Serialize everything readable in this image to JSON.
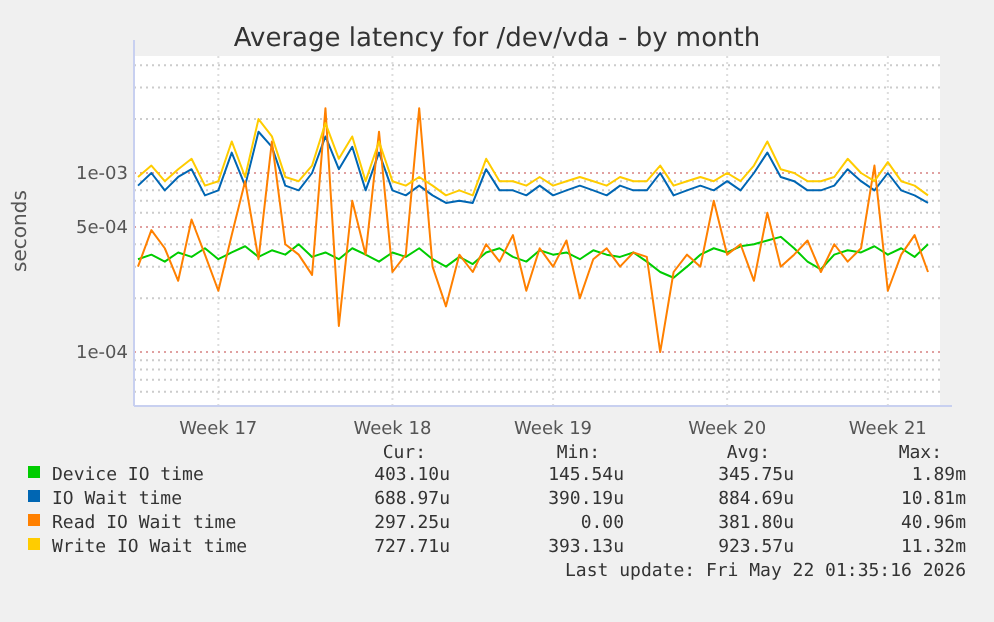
{
  "chart_data": {
    "type": "line",
    "title": "Average latency for /dev/vda - by month",
    "ylabel": "seconds",
    "log": "y",
    "grid": true,
    "legend": "bottom",
    "categories": [
      null,
      null,
      null,
      null,
      null,
      null,
      "Week 17",
      null,
      null,
      null,
      null,
      null,
      null,
      null,
      null,
      null,
      null,
      null,
      null,
      "Week 18",
      null,
      null,
      null,
      null,
      null,
      null,
      null,
      null,
      null,
      null,
      null,
      "Week 19",
      null,
      null,
      null,
      null,
      null,
      null,
      null,
      null,
      null,
      null,
      null,
      null,
      "Week 20",
      null,
      null,
      null,
      null,
      null,
      null,
      null,
      null,
      null,
      null,
      null,
      "Week 21",
      null,
      null,
      null
    ],
    "ylim": [
      5e-05,
      0.0045
    ],
    "yticks": [
      {
        "value": 6e-05,
        "label": null
      },
      {
        "value": 7e-05,
        "label": null
      },
      {
        "value": 8e-05,
        "label": null
      },
      {
        "value": 9e-05,
        "label": null
      },
      {
        "value": 0.0001,
        "label": "1e-04"
      },
      {
        "value": 0.0002,
        "label": null
      },
      {
        "value": 0.0003,
        "label": null
      },
      {
        "value": 0.0004,
        "label": null
      },
      {
        "value": 0.0005,
        "label": "5e-04"
      },
      {
        "value": 0.0006,
        "label": null
      },
      {
        "value": 0.0007,
        "label": null
      },
      {
        "value": 0.0008,
        "label": null
      },
      {
        "value": 0.0009,
        "label": null
      },
      {
        "value": 0.001,
        "label": "1e-03"
      },
      {
        "value": 0.002,
        "label": null
      },
      {
        "value": 0.003,
        "label": null
      },
      {
        "value": 0.004,
        "label": null
      }
    ],
    "series": [
      {
        "name": "Device IO time",
        "color": "#00cc00",
        "values": [
          0.00033,
          0.00035,
          0.00032,
          0.00036,
          0.00034,
          0.00038,
          0.00033,
          0.00036,
          0.00039,
          0.00034,
          0.00037,
          0.00035,
          0.0004,
          0.00034,
          0.00036,
          0.00033,
          0.00038,
          0.00035,
          0.00032,
          0.00036,
          0.00034,
          0.00038,
          0.00033,
          0.0003,
          0.00034,
          0.00031,
          0.00036,
          0.00038,
          0.00034,
          0.00032,
          0.00037,
          0.00035,
          0.00036,
          0.00033,
          0.00037,
          0.00035,
          0.00034,
          0.00036,
          0.00032,
          0.00028,
          0.00026,
          0.0003,
          0.00035,
          0.00038,
          0.00036,
          0.00039,
          0.0004,
          0.00042,
          0.00044,
          0.00038,
          0.00032,
          0.00029,
          0.00035,
          0.00037,
          0.00036,
          0.00039,
          0.00035,
          0.00038,
          0.00034,
          0.0004
        ]
      },
      {
        "name": "IO Wait time",
        "color": "#0066b3",
        "values": [
          0.00085,
          0.001,
          0.0008,
          0.00095,
          0.00105,
          0.00075,
          0.0008,
          0.0013,
          0.00085,
          0.0017,
          0.0014,
          0.00085,
          0.0008,
          0.001,
          0.0016,
          0.00105,
          0.0014,
          0.0008,
          0.0013,
          0.0008,
          0.00075,
          0.00085,
          0.00075,
          0.00068,
          0.0007,
          0.00068,
          0.00105,
          0.0008,
          0.0008,
          0.00075,
          0.00085,
          0.00075,
          0.0008,
          0.00085,
          0.0008,
          0.00075,
          0.00085,
          0.0008,
          0.0008,
          0.001,
          0.00075,
          0.0008,
          0.00085,
          0.0008,
          0.0009,
          0.0008,
          0.001,
          0.0013,
          0.00095,
          0.0009,
          0.0008,
          0.0008,
          0.00085,
          0.00105,
          0.0009,
          0.0008,
          0.001,
          0.0008,
          0.00075,
          0.00068
        ]
      },
      {
        "name": "Read IO Wait time",
        "color": "#ff8000",
        "values": [
          0.0003,
          0.00048,
          0.00038,
          0.00025,
          0.00055,
          0.00035,
          0.00022,
          0.00045,
          0.0009,
          0.00033,
          0.0015,
          0.0004,
          0.00035,
          0.00027,
          0.0023,
          0.00014,
          0.0007,
          0.00035,
          0.0017,
          0.00028,
          0.00035,
          0.0023,
          0.0003,
          0.00018,
          0.00035,
          0.00028,
          0.0004,
          0.00032,
          0.00045,
          0.00022,
          0.00038,
          0.0003,
          0.00042,
          0.0002,
          0.00033,
          0.00038,
          0.0003,
          0.00036,
          0.00034,
          0.0001,
          0.00028,
          0.00035,
          0.0003,
          0.0007,
          0.00035,
          0.0004,
          0.00025,
          0.0006,
          0.0003,
          0.00035,
          0.00042,
          0.00028,
          0.0004,
          0.00032,
          0.00038,
          0.0011,
          0.00022,
          0.00035,
          0.00045,
          0.00028
        ]
      },
      {
        "name": "Write IO Wait time",
        "color": "#ffcc00",
        "values": [
          0.00095,
          0.0011,
          0.0009,
          0.00105,
          0.0012,
          0.00085,
          0.0009,
          0.0015,
          0.00095,
          0.002,
          0.0016,
          0.00095,
          0.0009,
          0.0011,
          0.0019,
          0.0012,
          0.0016,
          0.0009,
          0.0015,
          0.0009,
          0.00085,
          0.00095,
          0.00085,
          0.00075,
          0.0008,
          0.00075,
          0.0012,
          0.0009,
          0.0009,
          0.00085,
          0.00095,
          0.00085,
          0.0009,
          0.00095,
          0.0009,
          0.00085,
          0.00095,
          0.0009,
          0.0009,
          0.0011,
          0.00085,
          0.0009,
          0.00095,
          0.0009,
          0.001,
          0.0009,
          0.0011,
          0.0015,
          0.00105,
          0.001,
          0.0009,
          0.0009,
          0.00095,
          0.0012,
          0.001,
          0.0009,
          0.00115,
          0.0009,
          0.00085,
          0.00075
        ]
      }
    ],
    "annotations": [
      "Cur:",
      "Min:",
      "Avg:",
      "Max:",
      "403.10u",
      "145.54u",
      "345.75u",
      "1.89m",
      "688.97u",
      "390.19u",
      "884.69u",
      "10.81m",
      "297.25u",
      "0.00",
      "381.80u",
      "40.96m",
      "727.71u",
      "393.13u",
      "923.57u",
      "11.32m",
      "Last update: Fri May 22 01:35:16 2026"
    ]
  }
}
